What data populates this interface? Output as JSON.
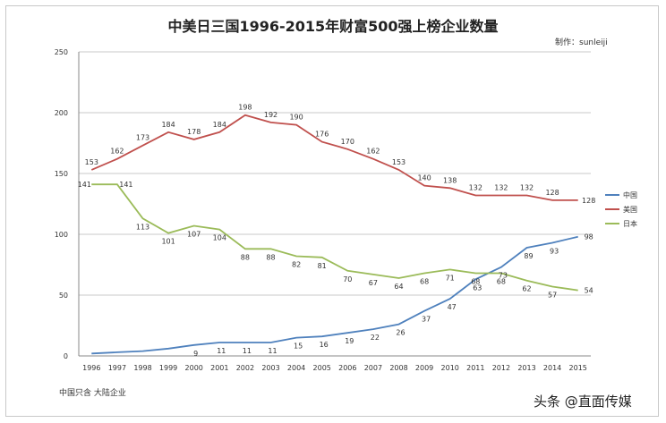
{
  "chart_data": {
    "type": "line",
    "title": "中美日三国1996-2015年财富500强上榜企业数量",
    "author_note": "制作：sunleiji",
    "footnote": "中国只含 大陆企业",
    "watermark": "头条 @直面传媒",
    "x": [
      "1996",
      "1997",
      "1998",
      "1999",
      "2000",
      "2001",
      "2002",
      "2003",
      "2004",
      "2005",
      "2006",
      "2007",
      "2008",
      "2009",
      "2010",
      "2011",
      "2012",
      "2013",
      "2014",
      "2015"
    ],
    "ylim": [
      0,
      250
    ],
    "yticks": [
      0,
      50,
      100,
      150,
      200,
      250
    ],
    "grid": true,
    "legend_position": "right",
    "series": [
      {
        "name": "中国",
        "color": "#4f81bd",
        "values": [
          2,
          3,
          4,
          6,
          9,
          11,
          11,
          11,
          15,
          16,
          19,
          22,
          26,
          37,
          47,
          63,
          73,
          89,
          93,
          98
        ],
        "labels": [
          "",
          "",
          "",
          "",
          "9",
          "11",
          "11",
          "11",
          "15",
          "16",
          "19",
          "22",
          "26",
          "37",
          "47",
          "63",
          "73",
          "89",
          "93",
          "98"
        ]
      },
      {
        "name": "美国",
        "color": "#c0504d",
        "values": [
          153,
          162,
          173,
          184,
          178,
          184,
          198,
          192,
          190,
          176,
          170,
          162,
          153,
          140,
          138,
          132,
          132,
          132,
          128,
          128
        ],
        "labels": [
          "153",
          "162",
          "173",
          "184",
          "178",
          "184",
          "198",
          "192",
          "190",
          "176",
          "170",
          "162",
          "153",
          "140",
          "138",
          "132",
          "132",
          "132",
          "128",
          "128"
        ]
      },
      {
        "name": "日本",
        "color": "#9bbb59",
        "values": [
          141,
          141,
          113,
          101,
          107,
          104,
          88,
          88,
          82,
          81,
          70,
          67,
          64,
          68,
          71,
          68,
          68,
          62,
          57,
          54
        ],
        "labels": [
          "141",
          "141",
          "113",
          "101",
          "107",
          "104",
          "88",
          "88",
          "82",
          "81",
          "70",
          "67",
          "64",
          "68",
          "71",
          "68",
          "68",
          "62",
          "57",
          "54"
        ]
      }
    ]
  }
}
